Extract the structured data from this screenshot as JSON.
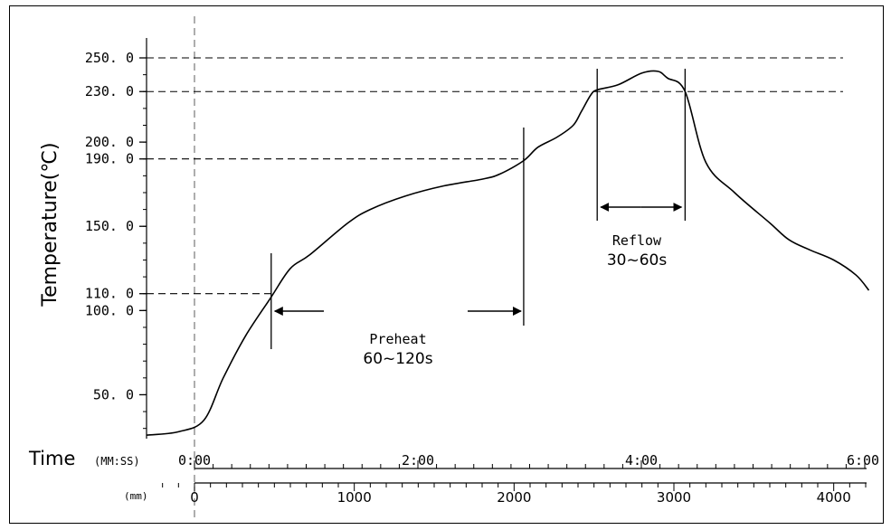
{
  "chart_data": {
    "type": "line",
    "title": "",
    "ylabel": "Temperature(℃)",
    "xlabel": "Time",
    "time_axis_unit": "(MM:SS)",
    "distance_axis_unit": "(mm)",
    "ylim": [
      25,
      260
    ],
    "y_ticks": [
      {
        "value": 250,
        "label": "250. 0"
      },
      {
        "value": 230,
        "label": "230. 0"
      },
      {
        "value": 200,
        "label": "200. 0"
      },
      {
        "value": 190,
        "label": "190. 0"
      },
      {
        "value": 150,
        "label": "150. 0"
      },
      {
        "value": 110,
        "label": "110. 0"
      },
      {
        "value": 100,
        "label": "100. 0"
      },
      {
        "value": 50,
        "label": "50. 0"
      }
    ],
    "time_ticks": [
      {
        "value": 0,
        "label": "0:00"
      },
      {
        "value": 120,
        "label": "2:00"
      },
      {
        "value": 240,
        "label": "4:00"
      },
      {
        "value": 360,
        "label": "6:00"
      }
    ],
    "distance_ticks": [
      {
        "value": 0,
        "label": "0"
      },
      {
        "value": 1000,
        "label": "1000"
      },
      {
        "value": 2000,
        "label": "2000"
      },
      {
        "value": 3000,
        "label": "3000"
      },
      {
        "value": 4000,
        "label": "4000"
      }
    ],
    "reference_lines_y": [
      250,
      230,
      190,
      110
    ],
    "series": [
      {
        "x_mm": [
          -300,
          -100,
          60,
          180,
          320,
          480,
          600,
          720,
          960,
          1100,
          1320,
          1560,
          1800,
          1910,
          2060,
          2150,
          2270,
          2370,
          2420,
          2480,
          2520,
          2650,
          2800,
          2900,
          2960,
          3070,
          3200,
          3380,
          3600,
          3720,
          3850,
          4000,
          4140,
          4220
        ],
        "temperature_c": [
          26,
          28,
          35,
          60,
          85,
          108,
          125,
          133,
          152,
          160,
          168,
          174,
          178,
          181,
          189,
          197,
          203,
          210,
          218,
          228,
          231,
          234,
          241,
          242,
          238,
          230,
          188,
          170,
          152,
          142,
          136,
          130,
          121,
          112
        ]
      }
    ],
    "annotations": {
      "preheat": {
        "title": "Preheat",
        "range": "60~120s",
        "start_mm": 480,
        "end_mm": 2060
      },
      "reflow": {
        "title": "Reflow",
        "range": "30~60s",
        "start_mm": 2520,
        "end_mm": 3070
      }
    },
    "line_color": "#000000"
  }
}
